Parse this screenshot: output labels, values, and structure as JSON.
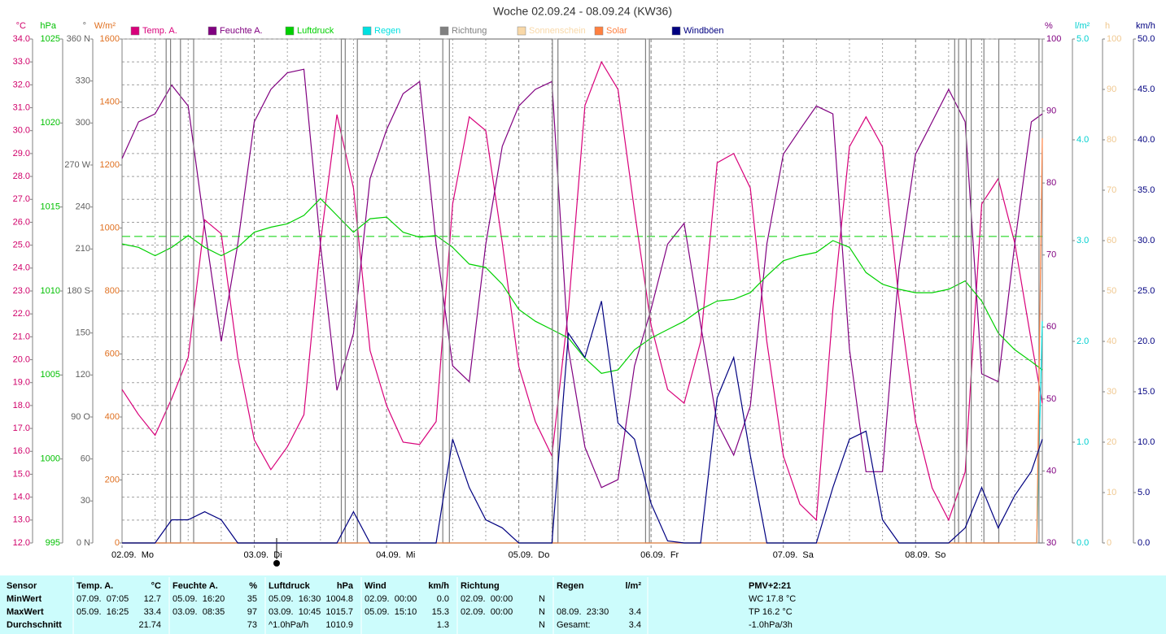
{
  "chart_data": {
    "type": "line",
    "title": "Woche 02.09.24 - 08.09.24 (KW36)",
    "legend": "top",
    "xlim": [
      0,
      167
    ],
    "xticks": [
      {
        "value": 0,
        "label": "02.09.  Mo"
      },
      {
        "value": 24,
        "label": "03.09.  Di"
      },
      {
        "value": 48,
        "label": "04.09.  Mi"
      },
      {
        "value": 72,
        "label": "05.09.  Do"
      },
      {
        "value": 96,
        "label": "06.09.  Fr"
      },
      {
        "value": 120,
        "label": "07.09.  Sa"
      },
      {
        "value": 144,
        "label": "08.09.  So"
      }
    ],
    "xgrid": [
      6,
      12,
      18,
      30,
      36,
      42,
      54,
      60,
      66,
      78,
      84,
      90,
      102,
      108,
      114,
      126,
      132,
      138,
      150,
      156,
      162
    ],
    "axes": [
      {
        "label": "°C",
        "side": "left",
        "color": "#d0006a",
        "grid": true,
        "ylim": [
          12,
          34
        ],
        "yticks": [
          {
            "value": 12,
            "label": "12.0"
          },
          {
            "value": 13,
            "label": "13.0"
          },
          {
            "value": 14,
            "label": "14.0"
          },
          {
            "value": 15,
            "label": "15.0"
          },
          {
            "value": 16,
            "label": "16.0"
          },
          {
            "value": 17,
            "label": "17.0"
          },
          {
            "value": 18,
            "label": "18.0"
          },
          {
            "value": 19,
            "label": "19.0"
          },
          {
            "value": 20,
            "label": "20.0"
          },
          {
            "value": 21,
            "label": "21.0"
          },
          {
            "value": 22,
            "label": "22.0"
          },
          {
            "value": 23,
            "label": "23.0"
          },
          {
            "value": 24,
            "label": "24.0"
          },
          {
            "value": 25,
            "label": "25.0"
          },
          {
            "value": 26,
            "label": "26.0"
          },
          {
            "value": 27,
            "label": "27.0"
          },
          {
            "value": 28,
            "label": "28.0"
          },
          {
            "value": 29,
            "label": "29.0"
          },
          {
            "value": 30,
            "label": "30.0"
          },
          {
            "value": 31,
            "label": "31.0"
          },
          {
            "value": 32,
            "label": "32.0"
          },
          {
            "value": 33,
            "label": "33.0"
          },
          {
            "value": 34,
            "label": "34.0"
          }
        ]
      },
      {
        "label": "hPa",
        "side": "left",
        "color": "#00c000",
        "ylim": [
          995,
          1025
        ],
        "yticks": [
          995,
          1000,
          1005,
          1010,
          1015,
          1020,
          1025
        ]
      },
      {
        "label": "°",
        "side": "left",
        "color": "#606060",
        "ylim": [
          0,
          360
        ],
        "yticks": [
          {
            "value": 0,
            "label": "0 N"
          },
          30,
          60,
          {
            "value": 90,
            "label": "90 O"
          },
          120,
          150,
          {
            "value": 180,
            "label": "180 S"
          },
          210,
          240,
          {
            "value": 270,
            "label": "270 W"
          },
          300,
          330,
          {
            "value": 360,
            "label": "360 N"
          }
        ]
      },
      {
        "label": "W/m²",
        "side": "left",
        "color": "#e07020",
        "ylim": [
          0,
          1600
        ],
        "yticks": [
          0,
          200,
          400,
          600,
          800,
          1000,
          1200,
          1400,
          1600
        ]
      },
      {
        "label": "%",
        "side": "right",
        "color": "#800080",
        "ylim": [
          30,
          100
        ],
        "yticks": [
          30,
          40,
          50,
          60,
          70,
          80,
          90,
          100
        ]
      },
      {
        "label": "l/m²",
        "side": "right",
        "color": "#00d0d0",
        "ylim": [
          0,
          5
        ],
        "yticks": [
          {
            "value": 0,
            "label": "0.0"
          },
          {
            "value": 1,
            "label": "1.0"
          },
          {
            "value": 2,
            "label": "2.0"
          },
          {
            "value": 3,
            "label": "3.0"
          },
          {
            "value": 4,
            "label": "4.0"
          },
          {
            "value": 5,
            "label": "5.0"
          }
        ]
      },
      {
        "label": "h",
        "side": "right",
        "color": "#f0c890",
        "ylim": [
          0,
          100
        ],
        "yticks": [
          0,
          10,
          20,
          30,
          40,
          50,
          60,
          70,
          80,
          90,
          100
        ]
      },
      {
        "label": "km/h",
        "side": "right",
        "color": "#000080",
        "ylim": [
          0,
          50
        ],
        "yticks": [
          {
            "value": 0,
            "label": "0.0"
          },
          {
            "value": 5,
            "label": "5.0"
          },
          {
            "value": 10,
            "label": "10.0"
          },
          {
            "value": 15,
            "label": "15.0"
          },
          {
            "value": 20,
            "label": "20.0"
          },
          {
            "value": 25,
            "label": "25.0"
          },
          {
            "value": 30,
            "label": "30.0"
          },
          {
            "value": 35,
            "label": "35.0"
          },
          {
            "value": 40,
            "label": "40.0"
          },
          {
            "value": 45,
            "label": "45.0"
          },
          {
            "value": 50,
            "label": "50.0"
          }
        ]
      }
    ],
    "x": [
      0,
      3,
      6,
      9,
      12,
      15,
      18,
      21,
      24,
      27,
      30,
      33,
      36,
      39,
      42,
      45,
      48,
      51,
      54,
      57,
      60,
      63,
      66,
      69,
      72,
      75,
      78,
      81,
      84,
      87,
      90,
      93,
      96,
      99,
      102,
      105,
      108,
      111,
      114,
      117,
      120,
      123,
      126,
      129,
      132,
      135,
      138,
      141,
      144,
      147,
      150,
      153,
      156,
      159,
      162,
      165,
      167
    ],
    "series": [
      {
        "name": "Temp. A.",
        "color": "#d8007a",
        "axis": 0,
        "values": [
          18.7,
          17.6,
          16.7,
          18.3,
          20.1,
          26.1,
          25.5,
          20.1,
          16.5,
          15.2,
          16.2,
          17.6,
          25.1,
          30.7,
          27.5,
          20.4,
          18.0,
          16.4,
          16.3,
          17.3,
          26.8,
          30.6,
          30.0,
          25.1,
          19.7,
          17.3,
          15.8,
          22.2,
          31.1,
          33.0,
          31.8,
          26.5,
          21.5,
          18.7,
          18.1,
          20.8,
          28.6,
          29.0,
          27.5,
          20.8,
          15.8,
          13.7,
          13.0,
          22.2,
          29.3,
          30.6,
          29.3,
          22.6,
          17.3,
          14.4,
          13.0,
          15.1,
          26.8,
          27.9,
          25.1,
          20.8,
          18.1
        ]
      },
      {
        "name": "Feuchte A.",
        "color": "#800080",
        "axis": 4,
        "values": [
          83.4,
          88.5,
          89.6,
          93.6,
          90.7,
          73.8,
          58.0,
          71.5,
          88.5,
          93.0,
          95.3,
          95.8,
          71.5,
          51.2,
          59.1,
          80.6,
          87.4,
          92.4,
          94.1,
          71.5,
          54.6,
          52.4,
          71.5,
          85.1,
          90.7,
          93.0,
          94.1,
          56.9,
          43.3,
          37.7,
          38.8,
          54.6,
          62.5,
          71.5,
          74.4,
          60.3,
          46.7,
          42.2,
          49.0,
          71.5,
          84.0,
          87.4,
          90.7,
          89.6,
          56.9,
          39.9,
          39.9,
          68.2,
          84.0,
          88.5,
          93.0,
          88.5,
          53.5,
          52.4,
          71.5,
          88.5,
          89.6
        ]
      },
      {
        "name": "Luftdruck",
        "color": "#00d000",
        "axis": 1,
        "reference": 1013.25,
        "values": [
          1012.8,
          1012.6,
          1012.1,
          1012.6,
          1013.3,
          1012.6,
          1012.1,
          1012.6,
          1013.5,
          1013.8,
          1014.0,
          1014.5,
          1015.5,
          1014.5,
          1013.5,
          1014.3,
          1014.4,
          1013.5,
          1013.2,
          1013.3,
          1012.6,
          1011.6,
          1011.4,
          1010.4,
          1008.9,
          1008.2,
          1007.7,
          1007.2,
          1006.0,
          1005.1,
          1005.3,
          1006.5,
          1007.2,
          1007.7,
          1008.2,
          1008.9,
          1009.4,
          1009.5,
          1009.9,
          1010.9,
          1011.8,
          1012.1,
          1012.3,
          1013.0,
          1012.6,
          1011.1,
          1010.4,
          1010.1,
          1009.9,
          1009.9,
          1010.1,
          1010.6,
          1009.4,
          1007.5,
          1006.5,
          1005.8,
          1005.3
        ]
      },
      {
        "name": "Regen",
        "color": "#00e0e0",
        "axis": 5,
        "x": [
          0,
          166,
          167
        ],
        "values": [
          0,
          0,
          2.2
        ]
      },
      {
        "name": "Richtung",
        "color": "#808080",
        "axis": 2,
        "x": [
          0,
          8.0,
          8.0,
          8.8,
          8.8,
          10.6,
          10.6,
          13.0,
          13.0,
          39.8,
          39.8,
          40.5,
          40.5,
          42.7,
          42.7,
          58.2,
          58.2,
          59.4,
          59.4,
          78.1,
          78.1,
          79.1,
          79.1,
          95.0,
          95.0,
          95.7,
          95.7,
          151.1,
          151.1,
          151.8,
          151.8,
          153.2,
          153.2,
          154.1,
          154.1,
          156.4,
          156.4,
          159.1,
          159.1,
          166.4,
          166.4,
          167
        ],
        "values": [
          0,
          0,
          360,
          360,
          0,
          0,
          360,
          360,
          0,
          0,
          360,
          360,
          0,
          0,
          360,
          360,
          0,
          0,
          360,
          360,
          0,
          0,
          360,
          360,
          0,
          0,
          360,
          360,
          0,
          0,
          360,
          360,
          0,
          0,
          360,
          360,
          0,
          0,
          360,
          360,
          0,
          0
        ]
      },
      {
        "name": "Sonnenschein",
        "color": "#f8d8a8",
        "axis": 6
      },
      {
        "name": "Solar",
        "color": "#ff8040",
        "axis": 3,
        "x": [
          0,
          166,
          167
        ],
        "values": [
          0,
          0,
          1285
        ]
      },
      {
        "name": "Windböen",
        "color": "#000080",
        "axis": 7,
        "values": [
          0,
          0,
          0,
          2.3,
          2.3,
          3.1,
          2.3,
          0,
          0,
          0,
          0,
          0,
          0,
          0,
          3.1,
          0,
          0,
          0,
          0,
          0,
          10.3,
          5.5,
          2.3,
          1.5,
          0,
          0,
          0,
          20.8,
          18.4,
          24.0,
          11.9,
          10.3,
          3.9,
          0.2,
          0,
          0,
          14.4,
          18.4,
          8.7,
          0,
          0,
          0,
          0,
          5.5,
          10.3,
          11.1,
          2.3,
          0,
          0,
          0,
          0,
          1.5,
          5.5,
          1.5,
          4.7,
          7.1,
          10.3
        ]
      }
    ]
  },
  "stats": {
    "sensor_label": "Sensor",
    "extra_title": "PMV+2:21",
    "columns": [
      {
        "name": "Temp. A.",
        "unit": "°C"
      },
      {
        "name": "Feuchte A.",
        "unit": "%"
      },
      {
        "name": "Luftdruck",
        "unit": "hPa"
      },
      {
        "name": "Wind",
        "unit": "km/h"
      },
      {
        "name": "Richtung"
      },
      {
        "name": "Regen",
        "unit": "l/m²"
      }
    ],
    "rows": [
      {
        "label": "MinWert",
        "cells": [
          [
            "07.09.  07:05",
            "12.7"
          ],
          [
            "05.09.  16:20",
            "35"
          ],
          [
            "05.09.  16:30",
            "1004.8"
          ],
          [
            "02.09.  00:00",
            "0.0"
          ],
          [
            "02.09.  00:00",
            "N"
          ],
          [
            null,
            null
          ]
        ],
        "extra": "WC 17.8 °C"
      },
      {
        "label": "MaxWert",
        "cells": [
          [
            "05.09.  16:25",
            "33.4"
          ],
          [
            "03.09.  08:35",
            "97"
          ],
          [
            "03.09.  10:45",
            "1015.7"
          ],
          [
            "05.09.  15:10",
            "15.3"
          ],
          [
            "02.09.  00:00",
            "N"
          ],
          [
            "08.09.  23:30",
            "3.4"
          ]
        ],
        "extra": "TP 16.2 °C"
      },
      {
        "label": "Durchschnitt",
        "cells": [
          [
            null,
            "21.74"
          ],
          [
            null,
            "73"
          ],
          [
            "^1.0hPa/h",
            "1010.9"
          ],
          [
            null,
            "1.3"
          ],
          [
            null,
            "N"
          ],
          [
            "Gesamt:",
            "3.4"
          ]
        ],
        "extra": "-1.0hPa/3h"
      }
    ]
  }
}
